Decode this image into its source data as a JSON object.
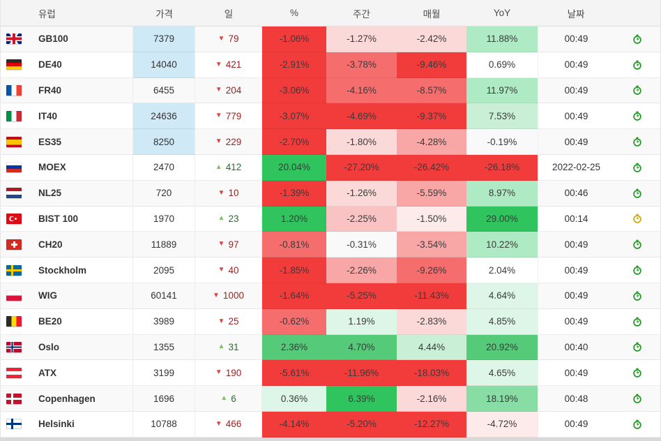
{
  "header": {
    "labels": [
      "유럽",
      "가격",
      "일",
      "%",
      "주간",
      "매월",
      "YoY",
      "날짜"
    ]
  },
  "palette": {
    "r4": "#f23b3b",
    "r3": "#f56d6d",
    "r2": "#f8a6a6",
    "r15": "#fac3c3",
    "r1": "#fcd9d9",
    "r05": "#fdebeb",
    "w": "",
    "g4": "#30c45e",
    "g3": "#55ca79",
    "g25": "#87dda4",
    "g2": "#aeeac3",
    "g15": "#c9f0d6",
    "g1": "#def6e8"
  },
  "colors": {
    "price_highlight": "#cfe9f7",
    "triangle_down": "#e04343",
    "number_down": "#9c1f1f",
    "triangle_up": "#7cc261",
    "number_up": "#23702b",
    "clock_green": "#1f9b1f",
    "clock_yellow": "#c9a90c"
  },
  "rows": [
    {
      "flag": "gb",
      "name": "GB100",
      "price": "7379",
      "hl": true,
      "dir": "down",
      "chg": "79",
      "cells": [
        {
          "v": "-1.06%",
          "bg": "r4"
        },
        {
          "v": "-1.27%",
          "bg": "r1"
        },
        {
          "v": "-2.42%",
          "bg": "r1"
        },
        {
          "v": "11.88%",
          "bg": "g2"
        }
      ],
      "date": "00:49",
      "clock": "green"
    },
    {
      "flag": "de",
      "name": "DE40",
      "price": "14040",
      "hl": true,
      "dir": "down",
      "chg": "421",
      "cells": [
        {
          "v": "-2.91%",
          "bg": "r4"
        },
        {
          "v": "-3.78%",
          "bg": "r3"
        },
        {
          "v": "-9.46%",
          "bg": "r4"
        },
        {
          "v": "0.69%",
          "bg": "w"
        }
      ],
      "date": "00:49",
      "clock": "green"
    },
    {
      "flag": "fr",
      "name": "FR40",
      "price": "6455",
      "hl": false,
      "dir": "down",
      "chg": "204",
      "cells": [
        {
          "v": "-3.06%",
          "bg": "r4"
        },
        {
          "v": "-4.16%",
          "bg": "r3"
        },
        {
          "v": "-8.57%",
          "bg": "r3"
        },
        {
          "v": "11.97%",
          "bg": "g2"
        }
      ],
      "date": "00:49",
      "clock": "green"
    },
    {
      "flag": "it",
      "name": "IT40",
      "price": "24636",
      "hl": true,
      "dir": "down",
      "chg": "779",
      "cells": [
        {
          "v": "-3.07%",
          "bg": "r4"
        },
        {
          "v": "-4.69%",
          "bg": "r4"
        },
        {
          "v": "-9.37%",
          "bg": "r4"
        },
        {
          "v": "7.53%",
          "bg": "g15"
        }
      ],
      "date": "00:49",
      "clock": "green"
    },
    {
      "flag": "es",
      "name": "ES35",
      "price": "8250",
      "hl": true,
      "dir": "down",
      "chg": "229",
      "cells": [
        {
          "v": "-2.70%",
          "bg": "r4"
        },
        {
          "v": "-1.80%",
          "bg": "r1"
        },
        {
          "v": "-4.28%",
          "bg": "r2"
        },
        {
          "v": "-0.19%",
          "bg": "w"
        }
      ],
      "date": "00:49",
      "clock": "green"
    },
    {
      "flag": "ru",
      "name": "MOEX",
      "price": "2470",
      "hl": false,
      "dir": "up",
      "chg": "412",
      "cells": [
        {
          "v": "20.04%",
          "bg": "g4"
        },
        {
          "v": "-27.20%",
          "bg": "r4"
        },
        {
          "v": "-26.42%",
          "bg": "r4"
        },
        {
          "v": "-26.18%",
          "bg": "r4"
        }
      ],
      "date": "2022-02-25",
      "clock": "green"
    },
    {
      "flag": "nl",
      "name": "NL25",
      "price": "720",
      "hl": false,
      "dir": "down",
      "chg": "10",
      "cells": [
        {
          "v": "-1.39%",
          "bg": "r4"
        },
        {
          "v": "-1.26%",
          "bg": "r1"
        },
        {
          "v": "-5.59%",
          "bg": "r2"
        },
        {
          "v": "8.97%",
          "bg": "g2"
        }
      ],
      "date": "00:46",
      "clock": "green"
    },
    {
      "flag": "tr",
      "name": "BIST 100",
      "price": "1970",
      "hl": false,
      "dir": "up",
      "chg": "23",
      "cells": [
        {
          "v": "1.20%",
          "bg": "g4"
        },
        {
          "v": "-2.25%",
          "bg": "r15"
        },
        {
          "v": "-1.50%",
          "bg": "r05"
        },
        {
          "v": "29.00%",
          "bg": "g4"
        }
      ],
      "date": "00:14",
      "clock": "yellow"
    },
    {
      "flag": "ch",
      "name": "CH20",
      "price": "11889",
      "hl": false,
      "dir": "down",
      "chg": "97",
      "cells": [
        {
          "v": "-0.81%",
          "bg": "r3"
        },
        {
          "v": "-0.31%",
          "bg": "w"
        },
        {
          "v": "-3.54%",
          "bg": "r2"
        },
        {
          "v": "10.22%",
          "bg": "g2"
        }
      ],
      "date": "00:49",
      "clock": "green"
    },
    {
      "flag": "se",
      "name": "Stockholm",
      "price": "2095",
      "hl": false,
      "dir": "down",
      "chg": "40",
      "cells": [
        {
          "v": "-1.85%",
          "bg": "r4"
        },
        {
          "v": "-2.26%",
          "bg": "r2"
        },
        {
          "v": "-9.26%",
          "bg": "r3"
        },
        {
          "v": "2.04%",
          "bg": "w"
        }
      ],
      "date": "00:49",
      "clock": "green"
    },
    {
      "flag": "pl",
      "name": "WIG",
      "price": "60141",
      "hl": false,
      "dir": "down",
      "chg": "1000",
      "cells": [
        {
          "v": "-1.64%",
          "bg": "r4"
        },
        {
          "v": "-5.25%",
          "bg": "r4"
        },
        {
          "v": "-11.43%",
          "bg": "r4"
        },
        {
          "v": "4.64%",
          "bg": "g1"
        }
      ],
      "date": "00:49",
      "clock": "green"
    },
    {
      "flag": "be",
      "name": "BE20",
      "price": "3989",
      "hl": false,
      "dir": "down",
      "chg": "25",
      "cells": [
        {
          "v": "-0.62%",
          "bg": "r3"
        },
        {
          "v": "1.19%",
          "bg": "g1"
        },
        {
          "v": "-2.83%",
          "bg": "r1"
        },
        {
          "v": "4.85%",
          "bg": "g1"
        }
      ],
      "date": "00:49",
      "clock": "green"
    },
    {
      "flag": "no",
      "name": "Oslo",
      "price": "1355",
      "hl": false,
      "dir": "up",
      "chg": "31",
      "cells": [
        {
          "v": "2.36%",
          "bg": "g3"
        },
        {
          "v": "4.70%",
          "bg": "g3"
        },
        {
          "v": "4.44%",
          "bg": "g15"
        },
        {
          "v": "20.92%",
          "bg": "g3"
        }
      ],
      "date": "00:40",
      "clock": "green"
    },
    {
      "flag": "at",
      "name": "ATX",
      "price": "3199",
      "hl": false,
      "dir": "down",
      "chg": "190",
      "cells": [
        {
          "v": "-5.61%",
          "bg": "r4"
        },
        {
          "v": "-11.96%",
          "bg": "r4"
        },
        {
          "v": "-18.03%",
          "bg": "r4"
        },
        {
          "v": "4.65%",
          "bg": "g1"
        }
      ],
      "date": "00:49",
      "clock": "green"
    },
    {
      "flag": "dk",
      "name": "Copenhagen",
      "price": "1696",
      "hl": false,
      "dir": "up",
      "chg": "6",
      "cells": [
        {
          "v": "0.36%",
          "bg": "g1"
        },
        {
          "v": "6.39%",
          "bg": "g4"
        },
        {
          "v": "-2.16%",
          "bg": "r1"
        },
        {
          "v": "18.19%",
          "bg": "g25"
        }
      ],
      "date": "00:48",
      "clock": "green"
    },
    {
      "flag": "fi",
      "name": "Helsinki",
      "price": "10788",
      "hl": false,
      "dir": "down",
      "chg": "466",
      "cells": [
        {
          "v": "-4.14%",
          "bg": "r4"
        },
        {
          "v": "-5.20%",
          "bg": "r4"
        },
        {
          "v": "-12.27%",
          "bg": "r4"
        },
        {
          "v": "-4.72%",
          "bg": "r05"
        }
      ],
      "date": "00:49",
      "clock": "green"
    }
  ]
}
